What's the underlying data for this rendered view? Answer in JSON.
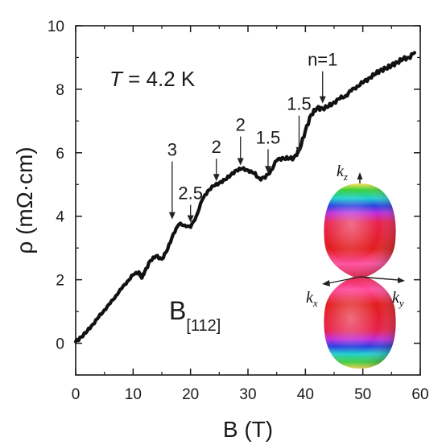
{
  "chart_data": {
    "type": "line",
    "title": "",
    "xlabel": "B (T)",
    "ylabel": "ρ (mΩ·cm)",
    "xlim": [
      0,
      60
    ],
    "ylim": [
      -1,
      10
    ],
    "xticks": [
      "0",
      "10",
      "20",
      "30",
      "40",
      "50",
      "60"
    ],
    "yticks": [
      "0",
      "2",
      "4",
      "6",
      "8",
      "10"
    ],
    "grid": false,
    "series": [
      {
        "name": "",
        "x": [
          0,
          1,
          2,
          3,
          4,
          5,
          6,
          7,
          8,
          9,
          10,
          11,
          11.5,
          12,
          13,
          14,
          15,
          16,
          17,
          18,
          19,
          20,
          21,
          22,
          23,
          24,
          25,
          26,
          27,
          28,
          29,
          30,
          31,
          32,
          33,
          34,
          35,
          36,
          37,
          38,
          39,
          40,
          41,
          42,
          43,
          44,
          45,
          46,
          47,
          48,
          49,
          50,
          51,
          52,
          53,
          54,
          55,
          56,
          57,
          58,
          59
        ],
        "y": [
          0.05,
          0.2,
          0.38,
          0.6,
          0.82,
          1.05,
          1.25,
          1.5,
          1.72,
          1.95,
          2.15,
          2.25,
          2.05,
          2.25,
          2.6,
          2.75,
          2.65,
          2.95,
          3.45,
          3.75,
          3.72,
          3.65,
          4.0,
          4.5,
          4.8,
          4.95,
          5.05,
          5.15,
          5.3,
          5.45,
          5.5,
          5.45,
          5.35,
          5.2,
          5.2,
          5.45,
          5.75,
          5.85,
          5.8,
          5.85,
          6.1,
          6.7,
          7.2,
          7.4,
          7.4,
          7.45,
          7.6,
          7.7,
          7.8,
          7.95,
          8.1,
          8.2,
          8.35,
          8.45,
          8.6,
          8.65,
          8.75,
          8.85,
          8.95,
          9.0,
          9.15
        ]
      }
    ],
    "annotations": [
      {
        "text": "3",
        "x": 16.8,
        "y": 3.75
      },
      {
        "text": "2.5",
        "x": 20,
        "y": 3.65
      },
      {
        "text": "2",
        "x": 24.5,
        "y": 4.95
      },
      {
        "text": "2",
        "x": 28.7,
        "y": 5.45
      },
      {
        "text": "1.5",
        "x": 33.5,
        "y": 5.2
      },
      {
        "text": "1.5",
        "x": 38.9,
        "y": 5.8
      },
      {
        "text": "n=1",
        "x": 43,
        "y": 7.4
      }
    ],
    "temperature_label": {
      "symbol": "T",
      "value": " = 4.2 K"
    },
    "field_label": {
      "main": "B",
      "sub": "[112]"
    },
    "inset": {
      "type": "fermi-surface",
      "axis_labels": {
        "kz": {
          "base": "k",
          "sub": "z"
        },
        "kx": {
          "base": "k",
          "sub": "x"
        },
        "ky": {
          "base": "k",
          "sub": "y"
        }
      }
    }
  }
}
